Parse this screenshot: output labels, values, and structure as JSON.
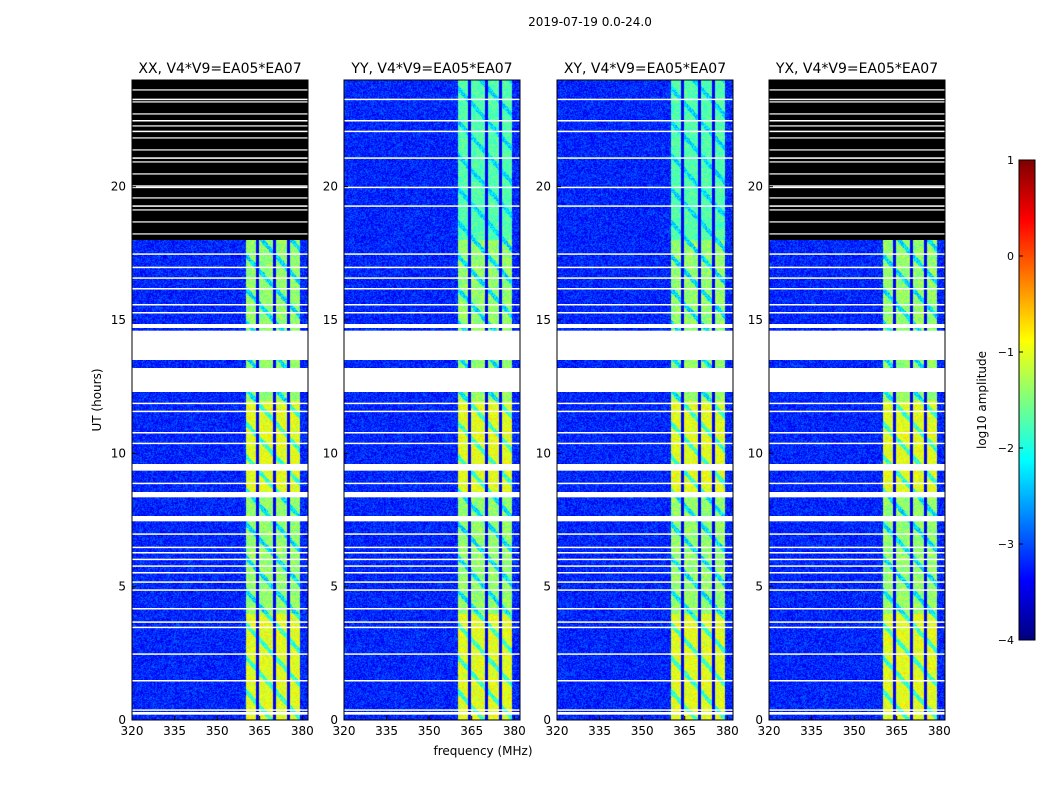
{
  "chart_data": {
    "type": "heatmap",
    "suptitle": "2019-07-19 0.0-24.0",
    "xlabel": "frequency (MHz)",
    "ylabel": "UT (hours)",
    "xlim": [
      320,
      382
    ],
    "ylim": [
      0,
      24
    ],
    "xticks": [
      320,
      335,
      350,
      365,
      380
    ],
    "yticks": [
      0,
      5,
      10,
      15,
      20
    ],
    "rfi_band_mhz": [
      360,
      379
    ],
    "rfi_band_vertical_lines_mhz": [
      364,
      370,
      375
    ],
    "panels": [
      {
        "title": "XX, V4*V9=EA05*EA07",
        "flagged_after_hours": 18.0
      },
      {
        "title": "YY, V4*V9=EA05*EA07",
        "flagged_after_hours": null
      },
      {
        "title": "XY, V4*V9=EA05*EA07",
        "flagged_after_hours": null
      },
      {
        "title": "YX, V4*V9=EA05*EA07",
        "flagged_after_hours": 18.0
      }
    ],
    "missing_data_gaps_hours": [
      [
        12.3,
        13.2
      ],
      [
        13.5,
        14.6
      ],
      [
        14.7,
        14.85
      ],
      [
        9.35,
        9.6
      ],
      [
        8.35,
        8.55
      ],
      [
        7.45,
        7.65
      ],
      [
        0.2,
        0.3
      ]
    ],
    "flag_lines_hours": [
      0.4,
      1.5,
      2.5,
      3.5,
      3.7,
      4.2,
      4.9,
      5.2,
      5.55,
      5.8,
      6.05,
      6.3,
      6.5,
      7.0,
      8.9,
      10.4,
      10.8,
      11.6,
      11.9,
      15.3,
      15.6,
      16.2,
      16.6,
      17.0,
      17.5,
      19.3,
      20.0,
      21.1,
      22.1,
      22.5,
      23.3
    ],
    "colorbar": {
      "label": "log10 amplitude",
      "range": [
        -4,
        1
      ],
      "ticks": [
        1,
        0,
        -1,
        -2,
        -3,
        -4
      ],
      "tick_labels": [
        "1",
        "0",
        "−1",
        "−2",
        "−3",
        "−4"
      ],
      "colormap": "jet",
      "colors": [
        "#00007f",
        "#0000ff",
        "#007fff",
        "#00ffff",
        "#7fff7f",
        "#ffff00",
        "#ff7f00",
        "#ff0000",
        "#7f0000"
      ]
    }
  }
}
